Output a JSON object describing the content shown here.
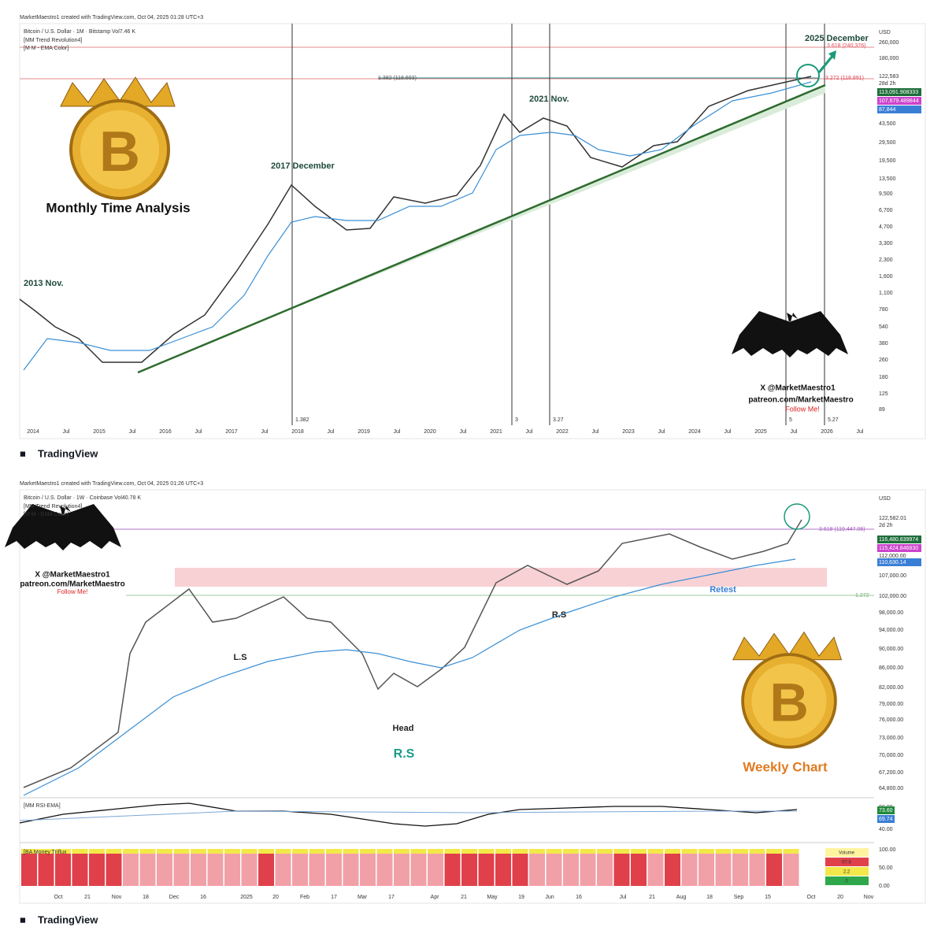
{
  "top": {
    "credit": "MarketMaestro1 created with TradingView.com, Oct 04, 2025 01:28 UTC+3",
    "symbol": "Bitcoin / U.S. Dollar · 1M · Bitstamp  Vol7.46 K",
    "indicators": [
      "[MM Trend Revolution4]",
      "[M M - EMA Color]"
    ],
    "annotations": [
      "2013 Nov.",
      "2017 December",
      "2021 Nov.",
      "2025 December"
    ],
    "caption": "Monthly Time Analysis",
    "fib": [
      "1.382 (118,693)",
      "3.618 (240,376)",
      "3.272 (118,891)"
    ],
    "price_axis": [
      "USD",
      "260,000",
      "180,000",
      "122,583",
      "28d 2h",
      "113,091.908333",
      "107,679.489844",
      "87,844",
      "43,500",
      "29,500",
      "19,500",
      "13,500",
      "9,500",
      "6,700",
      "4,700",
      "3,300",
      "2,300",
      "1,600",
      "1,100",
      "780",
      "540",
      "380",
      "260",
      "180",
      "125",
      "89"
    ],
    "time_axis": [
      "2014",
      "Jul",
      "2015",
      "Jul",
      "2016",
      "Jul",
      "2017",
      "Jul",
      "2018",
      "Jul",
      "2019",
      "Jul",
      "2020",
      "Jul",
      "2021",
      "Jul",
      "2022",
      "Jul",
      "2023",
      "Jul",
      "2024",
      "Jul",
      "2025",
      "Jul",
      "2026",
      "Jul"
    ],
    "line_labels": [
      "1.382",
      "3",
      "3.27",
      "5",
      "5.27"
    ],
    "watermark": [
      "X @MarketMaestro1",
      "patreon.com/MarketMaestro",
      "Follow Me!"
    ],
    "logo": "TradingView"
  },
  "bottom": {
    "credit": "MarketMaestro1 created with TradingView.com, Oct 04, 2025 01:26 UTC+3",
    "symbol": "Bitcoin / U.S. Dollar · 1W · Coinbase  Vol40.78 K",
    "indicators": [
      "[MM Trend Revolution4]",
      "[M M - EMA Color]"
    ],
    "annotations": [
      "L.S",
      "Head",
      "R.S",
      "R.S",
      "Retest"
    ],
    "caption": "Weekly Chart",
    "fib": [
      "3.618 (119,447.06)",
      "1.272"
    ],
    "price_axis": [
      "USD",
      "122,582.01",
      "2d 2h",
      "116,480.839974",
      "115,424.846830",
      "112,000.00",
      "110,630.14",
      "107,000.00",
      "102,000.00",
      "98,000.00",
      "94,000.00",
      "90,000.00",
      "86,000.00",
      "82,000.00",
      "79,000.00",
      "76,000.00",
      "73,000.00",
      "70,000.00",
      "67,200.00",
      "64,800.00"
    ],
    "rsi": {
      "title": "[MM RSI-EMA]",
      "axis": [
        "80.00",
        "73.60",
        "69.74",
        "40.00"
      ]
    },
    "money": {
      "title": "[BA Money Triflux",
      "axis": [
        "100.00",
        "50.00",
        "0.00"
      ],
      "volume": [
        "Volume",
        "97.8",
        "2.2",
        "0"
      ]
    },
    "time_axis": [
      "Oct",
      "21",
      "Nov",
      "18",
      "Dec",
      "16",
      "2025",
      "20",
      "Feb",
      "17",
      "Mar",
      "17",
      "Apr",
      "21",
      "May",
      "19",
      "Jun",
      "16",
      "Jul",
      "21",
      "Aug",
      "18",
      "Sep",
      "15",
      "Oct",
      "20",
      "Nov"
    ],
    "watermark": [
      "X @MarketMaestro1",
      "patreon.com/MarketMaestro",
      "Follow Me!"
    ],
    "logo": "TradingView"
  }
}
